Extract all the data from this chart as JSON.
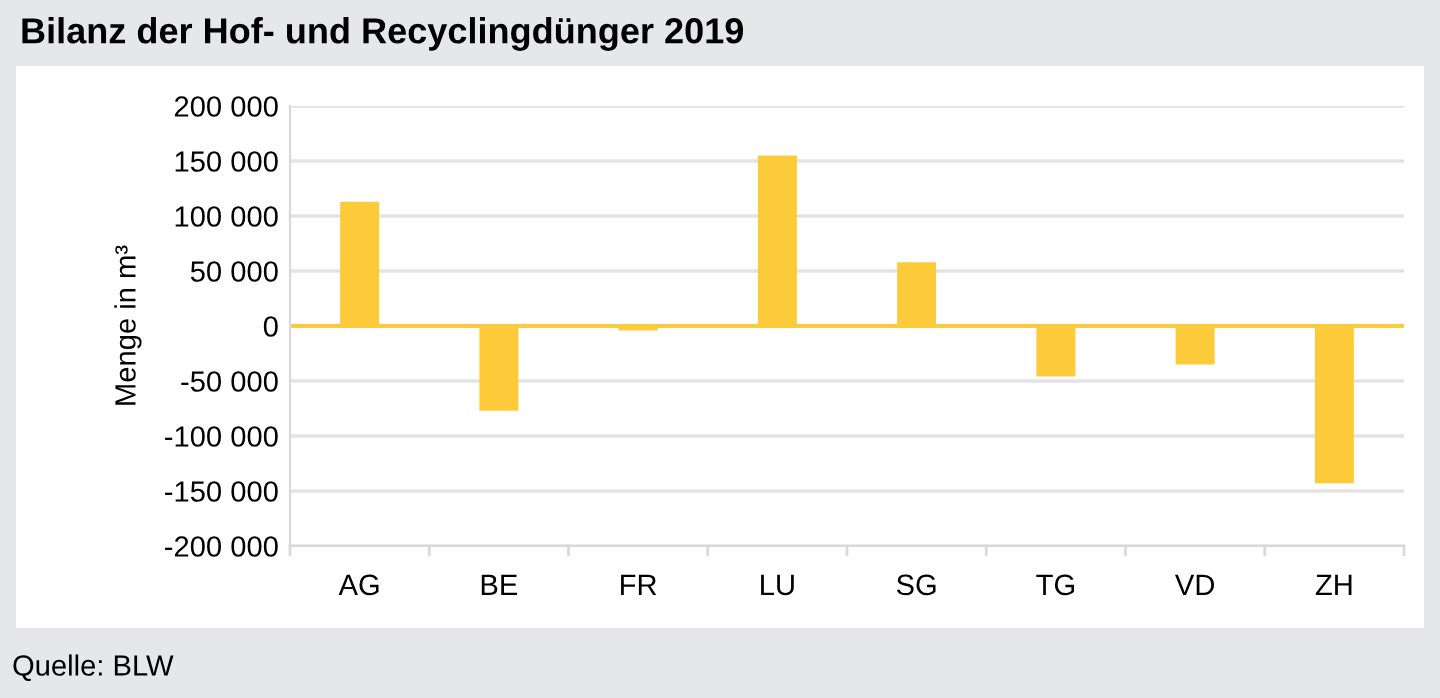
{
  "chart_data": {
    "type": "bar",
    "title": "Bilanz der Hof- und Recyclingdünger 2019",
    "ylabel": "Menge in m³",
    "categories": [
      "AG",
      "BE",
      "FR",
      "LU",
      "SG",
      "TG",
      "VD",
      "ZH"
    ],
    "values": [
      113000,
      -77000,
      -4000,
      155000,
      58000,
      -46000,
      -35000,
      -143000
    ],
    "color": "#fdcb3a",
    "ylim": [
      -200000,
      200000
    ],
    "yticks": [
      {
        "value": -200000,
        "label": "-200 000"
      },
      {
        "value": -150000,
        "label": "-150 000"
      },
      {
        "value": -100000,
        "label": "-100 000"
      },
      {
        "value": -50000,
        "label": "-50 000"
      },
      0,
      {
        "value": 50000,
        "label": "50 000"
      },
      {
        "value": 100000,
        "label": "100 000"
      },
      {
        "value": 150000,
        "label": "150 000"
      },
      {
        "value": 200000,
        "label": "200 000"
      }
    ],
    "grid": "y",
    "ref_lines": [
      {
        "axis": "y",
        "value": 0,
        "color": "#fdcb3a"
      }
    ],
    "annotations": [
      "Quelle: BLW"
    ]
  }
}
